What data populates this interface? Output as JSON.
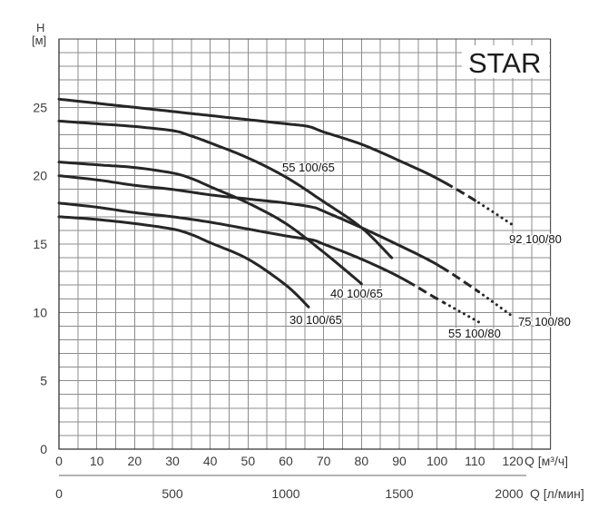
{
  "chart_data": {
    "type": "line",
    "title": "STAR",
    "ylabel": "H",
    "yunit": "[м]",
    "xlabel": "Q [м³/ч]",
    "x2label": "Q [л/мин]",
    "xlim": [
      0,
      130
    ],
    "ylim": [
      0,
      30
    ],
    "xticks": [
      0,
      10,
      20,
      30,
      40,
      50,
      60,
      70,
      80,
      90,
      100,
      110,
      120
    ],
    "yticks": [
      0,
      5,
      10,
      15,
      20,
      25
    ],
    "x2ticks": [
      0,
      500,
      1000,
      1500,
      2000
    ],
    "grid": true,
    "colors": {
      "curve": "#262626",
      "grid": "#8c8c8c",
      "axis": "#333333"
    },
    "series": [
      {
        "name": "92 100/80",
        "x": [
          0,
          10,
          20,
          30,
          40,
          50,
          60,
          66,
          70,
          80,
          90,
          100,
          110,
          120
        ],
        "y": [
          25.6,
          25.3,
          25.0,
          24.7,
          24.4,
          24.1,
          23.8,
          23.6,
          23.2,
          22.3,
          21.1,
          19.8,
          18.2,
          16.4
        ],
        "solid_to_q": 102,
        "dashed_to_q": 111
      },
      {
        "name": "55 100/65",
        "x": [
          0,
          10,
          20,
          30,
          34,
          40,
          50,
          60,
          70,
          80,
          88
        ],
        "y": [
          24.0,
          23.8,
          23.6,
          23.3,
          23.0,
          22.4,
          21.3,
          19.9,
          18.1,
          16.2,
          14.0
        ]
      },
      {
        "name": "40 100/65",
        "x": [
          0,
          10,
          20,
          30,
          35,
          40,
          50,
          60,
          70,
          80
        ],
        "y": [
          21.0,
          20.8,
          20.6,
          20.2,
          19.8,
          19.2,
          18.0,
          16.5,
          14.4,
          12.1
        ]
      },
      {
        "name": "75 100/80",
        "x": [
          0,
          10,
          20,
          30,
          40,
          50,
          60,
          67,
          70,
          80,
          90,
          100,
          110,
          120
        ],
        "y": [
          20.0,
          19.7,
          19.3,
          19.0,
          18.6,
          18.3,
          18.0,
          17.7,
          17.4,
          16.2,
          14.9,
          13.5,
          11.7,
          9.7
        ],
        "solid_to_q": 101,
        "dashed_to_q": 111
      },
      {
        "name": "55 100/80",
        "x": [
          0,
          10,
          20,
          30,
          40,
          50,
          60,
          67,
          70,
          80,
          90,
          100,
          111
        ],
        "y": [
          18.0,
          17.7,
          17.3,
          17.0,
          16.6,
          16.1,
          15.6,
          15.3,
          15.0,
          13.9,
          12.6,
          11.0,
          9.3
        ],
        "solid_to_q": 92,
        "dashed_to_q": 102
      },
      {
        "name": "30 100/65",
        "x": [
          0,
          10,
          20,
          30,
          35,
          40,
          50,
          60,
          66
        ],
        "y": [
          17.0,
          16.8,
          16.5,
          16.1,
          15.7,
          15.1,
          13.9,
          12.0,
          10.4
        ]
      }
    ]
  }
}
